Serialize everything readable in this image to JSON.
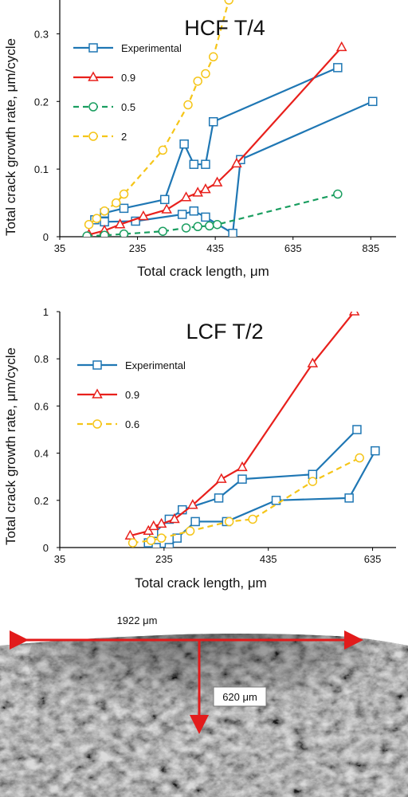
{
  "chart_data": [
    {
      "type": "line",
      "title": "HCF T/4",
      "xlabel": "Total crack length, μm",
      "ylabel": "Total crack growth rate, μm/cycle",
      "xlim": [
        35,
        900
      ],
      "ylim": [
        0,
        0.35
      ],
      "xticks": [
        35,
        235,
        435,
        635,
        835
      ],
      "yticks": [
        0,
        0.1,
        0.2,
        0.3
      ],
      "ytick_labels": [
        "0",
        "0.1",
        "0.2",
        "0.3"
      ],
      "legend_placement": "top-left",
      "series": [
        {
          "name": "Experimental",
          "color": "#1f77b4",
          "dash": "",
          "marker": "square",
          "segments": [
            [
              [
                150,
                0.035
              ],
              [
                200,
                0.042
              ],
              [
                305,
                0.055
              ],
              [
                355,
                0.137
              ],
              [
                380,
                0.107
              ],
              [
                410,
                0.107
              ],
              [
                430,
                0.17
              ],
              [
                750,
                0.25
              ]
            ],
            [
              [
                125,
                0.025
              ],
              [
                150,
                0.022
              ],
              [
                230,
                0.023
              ],
              [
                350,
                0.033
              ],
              [
                380,
                0.038
              ],
              [
                410,
                0.029
              ],
              [
                480,
                0.005
              ],
              [
                500,
                0.114
              ],
              [
                840,
                0.2
              ]
            ]
          ]
        },
        {
          "name": "0.9",
          "color": "#e8201c",
          "dash": "",
          "marker": "triangle",
          "segments": [
            [
              [
                110,
                0.003
              ],
              [
                150,
                0.009
              ],
              [
                190,
                0.018
              ],
              [
                250,
                0.03
              ],
              [
                310,
                0.04
              ],
              [
                360,
                0.058
              ],
              [
                390,
                0.065
              ],
              [
                410,
                0.07
              ],
              [
                440,
                0.08
              ],
              [
                490,
                0.108
              ],
              [
                760,
                0.28
              ]
            ]
          ]
        },
        {
          "name": "0.5",
          "color": "#1a9e60",
          "dash": "7,5",
          "marker": "circle",
          "segments": [
            [
              [
                105,
                0.001
              ],
              [
                150,
                0.002
              ],
              [
                200,
                0.004
              ],
              [
                300,
                0.008
              ],
              [
                360,
                0.013
              ],
              [
                390,
                0.015
              ],
              [
                420,
                0.016
              ],
              [
                440,
                0.018
              ],
              [
                750,
                0.063
              ]
            ]
          ]
        },
        {
          "name": "2",
          "color": "#f5c518",
          "dash": "7,5",
          "marker": "circle",
          "segments": [
            [
              [
                110,
                0.018
              ],
              [
                130,
                0.027
              ],
              [
                150,
                0.038
              ],
              [
                180,
                0.05
              ],
              [
                200,
                0.063
              ],
              [
                300,
                0.128
              ],
              [
                365,
                0.195
              ],
              [
                390,
                0.23
              ],
              [
                410,
                0.241
              ],
              [
                430,
                0.266
              ],
              [
                470,
                0.35
              ]
            ]
          ]
        }
      ]
    },
    {
      "type": "line",
      "title": "LCF T/2",
      "xlabel": "Total crack length, μm",
      "ylabel": "Total crack growth rate, μm/cycle",
      "xlim": [
        35,
        680
      ],
      "ylim": [
        0,
        1
      ],
      "xticks": [
        35,
        235,
        435,
        635
      ],
      "yticks": [
        0,
        0.2,
        0.4,
        0.6,
        0.8,
        1
      ],
      "ytick_labels": [
        "0",
        "0.2",
        "0.4",
        "0.6",
        "0.8",
        "1"
      ],
      "legend_placement": "top-left",
      "series": [
        {
          "name": "Experimental",
          "color": "#1f77b4",
          "dash": "",
          "marker": "square",
          "segments": [
            [
              [
                215,
                0.06
              ],
              [
                245,
                0.12
              ],
              [
                270,
                0.16
              ],
              [
                340,
                0.21
              ],
              [
                385,
                0.29
              ],
              [
                520,
                0.31
              ],
              [
                605,
                0.5
              ]
            ],
            [
              [
                205,
                0.02
              ],
              [
                220,
                0.0
              ],
              [
                245,
                0.0
              ],
              [
                260,
                0.04
              ],
              [
                295,
                0.11
              ],
              [
                355,
                0.11
              ],
              [
                450,
                0.2
              ],
              [
                590,
                0.21
              ],
              [
                640,
                0.41
              ]
            ]
          ]
        },
        {
          "name": "0.9",
          "color": "#e8201c",
          "dash": "",
          "marker": "triangle",
          "segments": [
            [
              [
                170,
                0.05
              ],
              [
                205,
                0.07
              ],
              [
                215,
                0.09
              ],
              [
                230,
                0.1
              ],
              [
                255,
                0.12
              ],
              [
                290,
                0.18
              ],
              [
                345,
                0.29
              ],
              [
                385,
                0.34
              ],
              [
                520,
                0.78
              ],
              [
                600,
                1.0
              ]
            ]
          ]
        },
        {
          "name": "0.6",
          "color": "#f5c518",
          "dash": "7,5",
          "marker": "circle",
          "segments": [
            [
              [
                175,
                0.02
              ],
              [
                210,
                0.03
              ],
              [
                230,
                0.04
              ],
              [
                285,
                0.07
              ],
              [
                360,
                0.11
              ],
              [
                405,
                0.12
              ],
              [
                520,
                0.28
              ],
              [
                610,
                0.38
              ]
            ]
          ]
        }
      ]
    }
  ],
  "micrograph": {
    "width_label": "1922 μm",
    "depth_label": "620 μm"
  },
  "colors": {
    "annotation_arrow": "#e21b1b",
    "axis": "#000000"
  }
}
